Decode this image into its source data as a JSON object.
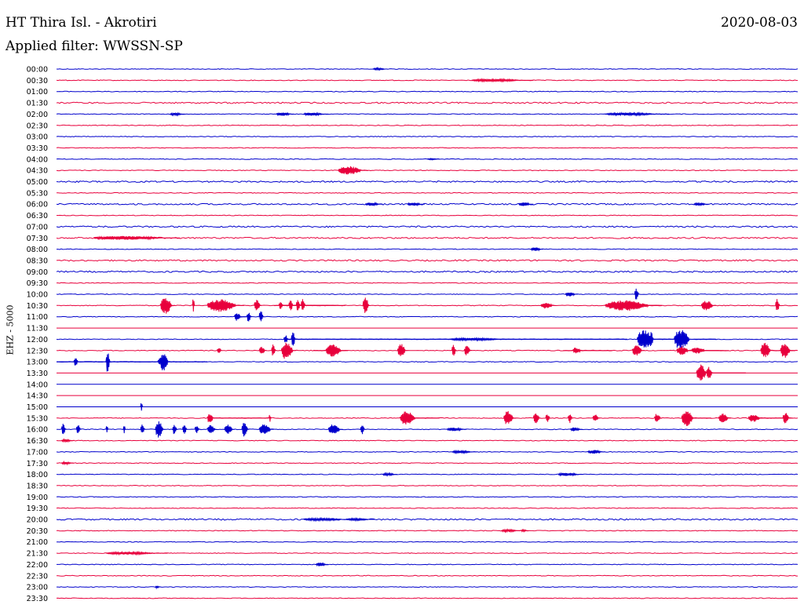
{
  "header": {
    "title": "HT Thira Isl. - Akrotiri",
    "date": "2020-08-03",
    "filter": "Applied filter: WWSSN-SP"
  },
  "channel": "EHZ - 5000",
  "colors": {
    "even_trace": "#0000cc",
    "odd_trace": "#e8003c",
    "text": "#000000",
    "background": "#ffffff"
  },
  "chart_data": {
    "type": "line",
    "title": "HT Thira Isl. - Akrotiri",
    "subtitle": "Applied filter: WWSSN-SP",
    "ylabel": "EHZ - 5000",
    "xlabel": "",
    "grid": false,
    "row_minutes": 30,
    "x_range_minutes": [
      0,
      30
    ],
    "categories": [
      "00:00",
      "00:30",
      "01:00",
      "01:30",
      "02:00",
      "02:30",
      "03:00",
      "03:30",
      "04:00",
      "04:30",
      "05:00",
      "05:30",
      "06:00",
      "06:30",
      "07:00",
      "07:30",
      "08:00",
      "08:30",
      "09:00",
      "09:30",
      "10:00",
      "10:30",
      "11:00",
      "11:30",
      "12:00",
      "12:30",
      "13:00",
      "13:30",
      "14:00",
      "14:30",
      "15:00",
      "15:30",
      "16:00",
      "16:30",
      "17:00",
      "17:30",
      "18:00",
      "18:30",
      "19:00",
      "19:30",
      "20:00",
      "20:30",
      "21:00",
      "21:30",
      "22:00",
      "22:30",
      "23:00",
      "23:30"
    ],
    "noise_level": [
      1,
      1,
      1,
      2,
      1,
      1,
      1,
      1,
      1,
      1,
      2,
      1,
      2,
      1,
      2,
      2,
      1,
      2,
      2,
      1,
      1,
      1,
      1,
      0,
      1,
      1,
      1,
      0,
      0,
      0,
      0,
      1,
      1,
      1,
      1,
      1,
      1,
      1,
      1,
      1,
      2,
      1,
      1,
      1,
      1,
      1,
      1,
      1
    ],
    "bursts": [
      {
        "row": 0,
        "minute": 12.8,
        "duration": 0.6,
        "amp": 1.5
      },
      {
        "row": 1,
        "minute": 16.8,
        "duration": 2.5,
        "amp": 2
      },
      {
        "row": 4,
        "minute": 4.6,
        "duration": 0.6,
        "amp": 2
      },
      {
        "row": 4,
        "minute": 8.9,
        "duration": 0.7,
        "amp": 3
      },
      {
        "row": 4,
        "minute": 10.0,
        "duration": 1.0,
        "amp": 2.5
      },
      {
        "row": 4,
        "minute": 22.2,
        "duration": 2.6,
        "amp": 2
      },
      {
        "row": 8,
        "minute": 15.0,
        "duration": 0.5,
        "amp": 1
      },
      {
        "row": 9,
        "minute": 11.4,
        "duration": 1.2,
        "amp": 7
      },
      {
        "row": 12,
        "minute": 12.5,
        "duration": 0.7,
        "amp": 2.5
      },
      {
        "row": 12,
        "minute": 14.2,
        "duration": 0.7,
        "amp": 2.5
      },
      {
        "row": 12,
        "minute": 18.7,
        "duration": 0.6,
        "amp": 3
      },
      {
        "row": 12,
        "minute": 25.8,
        "duration": 0.6,
        "amp": 2
      },
      {
        "row": 15,
        "minute": 1.5,
        "duration": 3.5,
        "amp": 3
      },
      {
        "row": 16,
        "minute": 19.2,
        "duration": 0.5,
        "amp": 3
      },
      {
        "row": 20,
        "minute": 20.6,
        "duration": 0.5,
        "amp": 3.5
      },
      {
        "row": 20,
        "minute": 23.4,
        "duration": 0.2,
        "amp": 9
      },
      {
        "row": 21,
        "minute": 4.2,
        "duration": 0.6,
        "amp": 13
      },
      {
        "row": 21,
        "minute": 5.5,
        "duration": 0.1,
        "amp": 12
      },
      {
        "row": 21,
        "minute": 6.1,
        "duration": 1.5,
        "amp": 10
      },
      {
        "row": 21,
        "minute": 8.0,
        "duration": 0.3,
        "amp": 9
      },
      {
        "row": 21,
        "minute": 9.9,
        "duration": 0.2,
        "amp": 10
      },
      {
        "row": 21,
        "minute": 9.9,
        "duration": 1.4,
        "amp": 0,
        "line": true
      },
      {
        "row": 21,
        "minute": 9.7,
        "duration": 0.2,
        "amp": 9
      },
      {
        "row": 21,
        "minute": 9.4,
        "duration": 0.2,
        "amp": 9
      },
      {
        "row": 21,
        "minute": 8.8,
        "duration": 1.2,
        "amp": 0,
        "line": true
      },
      {
        "row": 21,
        "minute": 9.7,
        "duration": 2.0,
        "amp": 0,
        "line": true
      },
      {
        "row": 21,
        "minute": 9.0,
        "duration": 0.2,
        "amp": 7
      },
      {
        "row": 21,
        "minute": 9.2,
        "duration": 0.5,
        "amp": 0,
        "line": true
      },
      {
        "row": 21,
        "minute": 9.5,
        "duration": 1.5,
        "amp": 0,
        "line": true
      },
      {
        "row": 21,
        "minute": 9.6,
        "duration": 0.4,
        "amp": 0,
        "line": true
      },
      {
        "row": 21,
        "minute": 9.3,
        "duration": 0.4,
        "amp": 0,
        "line": true
      },
      {
        "row": 21,
        "minute": 9.1,
        "duration": 0.4,
        "amp": 0,
        "line": true
      },
      {
        "row": 21,
        "minute": 9.35,
        "duration": 0.3,
        "amp": 0,
        "line": true
      },
      {
        "row": 21,
        "minute": 12.4,
        "duration": 0.3,
        "amp": 13
      },
      {
        "row": 21,
        "minute": 19.6,
        "duration": 0.6,
        "amp": 5
      },
      {
        "row": 21,
        "minute": 22.2,
        "duration": 2.3,
        "amp": 8
      },
      {
        "row": 21,
        "minute": 22.2,
        "duration": 2.3,
        "amp": 0,
        "line": true
      },
      {
        "row": 21,
        "minute": 23.0,
        "duration": 0.5,
        "amp": 9
      },
      {
        "row": 21,
        "minute": 23.4,
        "duration": 1.0,
        "amp": 0,
        "line": true
      },
      {
        "row": 21,
        "minute": 26.1,
        "duration": 0.6,
        "amp": 8
      },
      {
        "row": 21,
        "minute": 29.1,
        "duration": 0.2,
        "amp": 10
      },
      {
        "row": 22,
        "minute": 7.2,
        "duration": 0.3,
        "amp": 7
      },
      {
        "row": 22,
        "minute": 7.7,
        "duration": 0.2,
        "amp": 8
      },
      {
        "row": 22,
        "minute": 7.3,
        "duration": 0.6,
        "amp": 0,
        "line": true
      },
      {
        "row": 22,
        "minute": 8.2,
        "duration": 0.2,
        "amp": 9
      },
      {
        "row": 24,
        "minute": 9.2,
        "duration": 0.2,
        "amp": 7
      },
      {
        "row": 24,
        "minute": 9.5,
        "duration": 0.2,
        "amp": 12
      },
      {
        "row": 24,
        "minute": 9.2,
        "duration": 13.9,
        "amp": 0,
        "line": true
      },
      {
        "row": 24,
        "minute": 15.9,
        "duration": 2.6,
        "amp": 2
      },
      {
        "row": 24,
        "minute": 23.5,
        "duration": 0.8,
        "amp": 16
      },
      {
        "row": 24,
        "minute": 23.5,
        "duration": 1.9,
        "amp": 0,
        "line": true
      },
      {
        "row": 24,
        "minute": 24.3,
        "duration": 0.4,
        "amp": 0,
        "line": true
      },
      {
        "row": 24,
        "minute": 24.0,
        "duration": 0.2,
        "amp": 12
      },
      {
        "row": 24,
        "minute": 25.0,
        "duration": 0.8,
        "amp": 16
      },
      {
        "row": 24,
        "minute": 25.8,
        "duration": 0.9,
        "amp": 0,
        "line": true
      },
      {
        "row": 25,
        "minute": 6.5,
        "duration": 0.2,
        "amp": 5
      },
      {
        "row": 25,
        "minute": 8.2,
        "duration": 0.3,
        "amp": 6
      },
      {
        "row": 25,
        "minute": 8.7,
        "duration": 0.2,
        "amp": 10
      },
      {
        "row": 25,
        "minute": 9.1,
        "duration": 0.6,
        "amp": 14
      },
      {
        "row": 25,
        "minute": 10.9,
        "duration": 0.8,
        "amp": 10
      },
      {
        "row": 25,
        "minute": 10.4,
        "duration": 1.4,
        "amp": 0,
        "line": true
      },
      {
        "row": 25,
        "minute": 13.8,
        "duration": 0.4,
        "amp": 11
      },
      {
        "row": 25,
        "minute": 16.0,
        "duration": 0.2,
        "amp": 9
      },
      {
        "row": 25,
        "minute": 16.5,
        "duration": 0.3,
        "amp": 8
      },
      {
        "row": 25,
        "minute": 20.9,
        "duration": 0.4,
        "amp": 5
      },
      {
        "row": 25,
        "minute": 20.5,
        "duration": 2.0,
        "amp": 0,
        "line": true
      },
      {
        "row": 25,
        "minute": 23.3,
        "duration": 0.5,
        "amp": 8
      },
      {
        "row": 25,
        "minute": 25.1,
        "duration": 0.6,
        "amp": 7
      },
      {
        "row": 25,
        "minute": 25.7,
        "duration": 0.7,
        "amp": 5
      },
      {
        "row": 25,
        "minute": 25.6,
        "duration": 1.6,
        "amp": 0,
        "line": true
      },
      {
        "row": 25,
        "minute": 26.4,
        "duration": 0.6,
        "amp": 0,
        "line": true
      },
      {
        "row": 25,
        "minute": 28.5,
        "duration": 0.5,
        "amp": 12
      },
      {
        "row": 25,
        "minute": 29.3,
        "duration": 0.5,
        "amp": 12
      },
      {
        "row": 25,
        "minute": 29.0,
        "duration": 0.9,
        "amp": 0,
        "line": true
      },
      {
        "row": 26,
        "minute": 0.7,
        "duration": 0.2,
        "amp": 7
      },
      {
        "row": 26,
        "minute": 0.0,
        "duration": 4.5,
        "amp": 0,
        "line": true
      },
      {
        "row": 26,
        "minute": 2.0,
        "duration": 0.2,
        "amp": 18
      },
      {
        "row": 26,
        "minute": 4.3,
        "duration": 1.8,
        "amp": 0,
        "line": true
      },
      {
        "row": 26,
        "minute": 4.2,
        "duration": 0.4,
        "amp": 16
      },
      {
        "row": 26,
        "minute": 4.1,
        "duration": 0.3,
        "amp": 7
      },
      {
        "row": 27,
        "minute": 25.9,
        "duration": 0.5,
        "amp": 14
      },
      {
        "row": 27,
        "minute": 26.5,
        "duration": 1.4,
        "amp": 0,
        "line": true
      },
      {
        "row": 27,
        "minute": 26.3,
        "duration": 0.3,
        "amp": 10
      },
      {
        "row": 30,
        "minute": 3.4,
        "duration": 0.1,
        "amp": 8
      },
      {
        "row": 31,
        "minute": 6.1,
        "duration": 0.3,
        "amp": 8
      },
      {
        "row": 31,
        "minute": 6.3,
        "duration": 2.3,
        "amp": 0,
        "line": true
      },
      {
        "row": 31,
        "minute": 8.6,
        "duration": 0.1,
        "amp": 6
      },
      {
        "row": 31,
        "minute": 13.9,
        "duration": 0.8,
        "amp": 11
      },
      {
        "row": 31,
        "minute": 13.9,
        "duration": 1.6,
        "amp": 0,
        "line": true
      },
      {
        "row": 31,
        "minute": 18.1,
        "duration": 0.5,
        "amp": 11
      },
      {
        "row": 31,
        "minute": 19.3,
        "duration": 0.3,
        "amp": 8
      },
      {
        "row": 31,
        "minute": 19.8,
        "duration": 0.2,
        "amp": 7
      },
      {
        "row": 31,
        "minute": 20.7,
        "duration": 0.2,
        "amp": 8
      },
      {
        "row": 31,
        "minute": 21.7,
        "duration": 0.3,
        "amp": 6
      },
      {
        "row": 31,
        "minute": 24.2,
        "duration": 0.3,
        "amp": 7
      },
      {
        "row": 31,
        "minute": 25.3,
        "duration": 0.6,
        "amp": 13
      },
      {
        "row": 31,
        "minute": 25.3,
        "duration": 1.2,
        "amp": 0,
        "line": true
      },
      {
        "row": 31,
        "minute": 26.8,
        "duration": 0.5,
        "amp": 7
      },
      {
        "row": 31,
        "minute": 28.0,
        "duration": 0.6,
        "amp": 6
      },
      {
        "row": 31,
        "minute": 28.0,
        "duration": 1.8,
        "amp": 0,
        "line": true
      },
      {
        "row": 31,
        "minute": 29.4,
        "duration": 0.3,
        "amp": 9
      },
      {
        "row": 32,
        "minute": 0.2,
        "duration": 0.2,
        "amp": 9
      },
      {
        "row": 32,
        "minute": 0.8,
        "duration": 0.2,
        "amp": 8
      },
      {
        "row": 32,
        "minute": 2.0,
        "duration": 0.1,
        "amp": 6
      },
      {
        "row": 32,
        "minute": 2.7,
        "duration": 0.1,
        "amp": 7
      },
      {
        "row": 32,
        "minute": 3.4,
        "duration": 0.2,
        "amp": 8
      },
      {
        "row": 32,
        "minute": 4.0,
        "duration": 0.4,
        "amp": 13
      },
      {
        "row": 32,
        "minute": 4.7,
        "duration": 0.2,
        "amp": 8
      },
      {
        "row": 32,
        "minute": 5.1,
        "duration": 0.2,
        "amp": 8
      },
      {
        "row": 32,
        "minute": 5.6,
        "duration": 0.2,
        "amp": 6
      },
      {
        "row": 32,
        "minute": 6.1,
        "duration": 0.4,
        "amp": 7
      },
      {
        "row": 32,
        "minute": 6.8,
        "duration": 0.4,
        "amp": 8
      },
      {
        "row": 32,
        "minute": 7.5,
        "duration": 0.3,
        "amp": 12
      },
      {
        "row": 32,
        "minute": 8.2,
        "duration": 0.6,
        "amp": 8
      },
      {
        "row": 32,
        "minute": 11.0,
        "duration": 0.6,
        "amp": 8
      },
      {
        "row": 32,
        "minute": 12.3,
        "duration": 0.2,
        "amp": 9
      },
      {
        "row": 32,
        "minute": 15.8,
        "duration": 0.8,
        "amp": 3
      },
      {
        "row": 32,
        "minute": 20.8,
        "duration": 0.5,
        "amp": 3
      },
      {
        "row": 33,
        "minute": 0.2,
        "duration": 0.5,
        "amp": 2
      },
      {
        "row": 34,
        "minute": 16.0,
        "duration": 1.0,
        "amp": 2
      },
      {
        "row": 34,
        "minute": 21.5,
        "duration": 0.7,
        "amp": 3
      },
      {
        "row": 35,
        "minute": 0.2,
        "duration": 0.5,
        "amp": 2
      },
      {
        "row": 36,
        "minute": 13.2,
        "duration": 0.6,
        "amp": 2
      },
      {
        "row": 36,
        "minute": 20.3,
        "duration": 1.0,
        "amp": 2.5
      },
      {
        "row": 40,
        "minute": 10.0,
        "duration": 2.0,
        "amp": 2
      },
      {
        "row": 40,
        "minute": 11.7,
        "duration": 1.2,
        "amp": 1.5
      },
      {
        "row": 41,
        "minute": 18.0,
        "duration": 0.8,
        "amp": 2
      },
      {
        "row": 41,
        "minute": 18.8,
        "duration": 0.3,
        "amp": 1.5
      },
      {
        "row": 43,
        "minute": 2.0,
        "duration": 2.5,
        "amp": 2
      },
      {
        "row": 44,
        "minute": 10.5,
        "duration": 0.5,
        "amp": 3
      },
      {
        "row": 46,
        "minute": 4.0,
        "duration": 0.2,
        "amp": 2
      }
    ]
  }
}
